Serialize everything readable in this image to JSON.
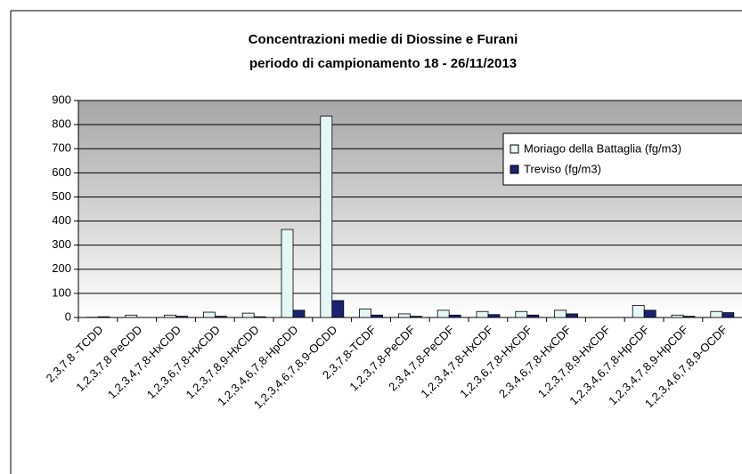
{
  "chart_data": {
    "type": "bar",
    "title": "Concentrazioni medie di Diossine e Furani",
    "subtitle": "periodo di campionamento 18 - 26/11/2013",
    "categories": [
      "2,3,7,8 -TCDD",
      "1,2,3,7,8 PeCDD",
      "1,2,3,4,7,8-HxCDD",
      "1,2,3,6,7,8-HxCDD",
      "1,2,3,7,8,9-HxCDD",
      "1,2,3,4,6,7,8-HpCDD",
      "1,2,3,4,6,7,8,9-OCDD",
      "2,3,7,8-TCDF",
      "1,2,3,7,8-PeCDF",
      "2,3,4,7,8-PeCDF",
      "1,2,3,4,7,8-HxCDF",
      "1,2,3,6,7,8-HxCDF",
      "2,3,4,6,7,8-HxCDF",
      "1,2,3,7,8,9-HxCDF",
      "1,2,3,4,6,7,8-HpCDF",
      "1,2,3,4,7,8,9-HpCDF",
      "1,2,3,4,6,7,8,9-OCDF"
    ],
    "series": [
      {
        "name": "Moriago della Battaglia (fg/m3)",
        "color": "#e4f6f6",
        "values": [
          1,
          10,
          10,
          22,
          18,
          365,
          835,
          35,
          15,
          30,
          25,
          25,
          30,
          0,
          50,
          10,
          25
        ]
      },
      {
        "name": "Treviso (fg/m3)",
        "color": "#1a2370",
        "values": [
          3,
          0,
          5,
          5,
          3,
          30,
          70,
          10,
          5,
          10,
          12,
          10,
          15,
          0,
          30,
          5,
          20
        ]
      }
    ],
    "ylim": [
      0,
      900
    ],
    "yticks": [
      0,
      100,
      200,
      300,
      400,
      500,
      600,
      700,
      800,
      900
    ],
    "grid": true,
    "legend": "top-right"
  }
}
